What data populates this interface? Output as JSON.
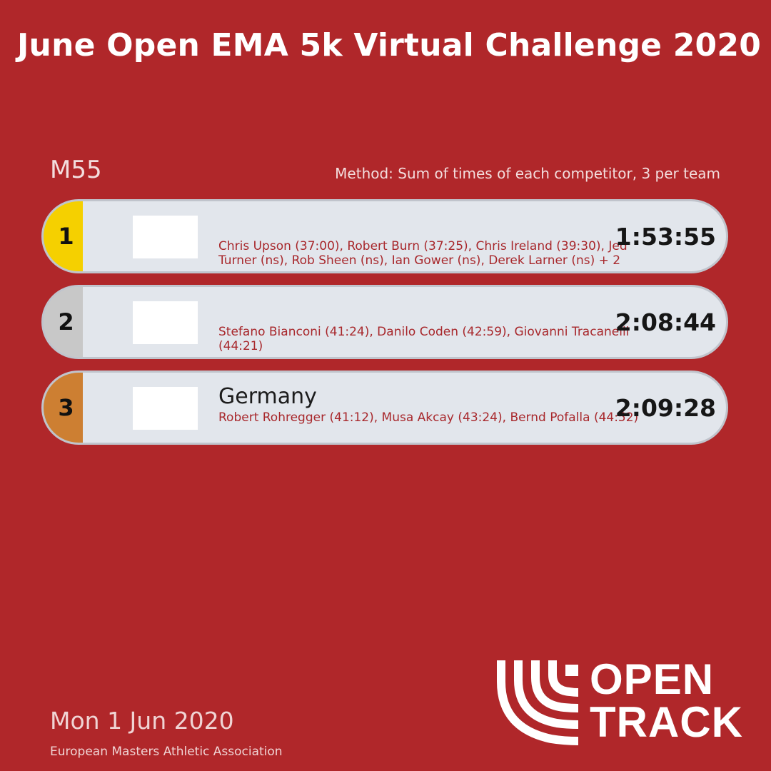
{
  "title": "June Open EMA 5k Virtual Challenge 2020",
  "category": "M55",
  "method": "Method: Sum of times of each competitor, 3 per team",
  "results": [
    {
      "rank": "1",
      "team": "",
      "members": "Chris Upson (37:00), Robert Burn (37:25), Chris Ireland (39:30), Jed Turner (ns), Rob Sheen (ns), Ian Gower (ns), Derek Larner (ns) + 2",
      "time": "1:53:55",
      "color": "#f5d000"
    },
    {
      "rank": "2",
      "team": "",
      "members": "Stefano Bianconi (41:24), Danilo Coden (42:59), Giovanni Tracanelli (44:21)",
      "time": "2:08:44",
      "color": "#c8c8c8"
    },
    {
      "rank": "3",
      "team": "Germany",
      "members": "Robert Rohregger (41:12), Musa Akcay (43:24), Bernd Pofalla (44:52)",
      "time": "2:09:28",
      "color": "#cd7f32"
    }
  ],
  "date": "Mon 1 Jun 2020",
  "organization": "European Masters Athletic Association",
  "brand": {
    "line1": "OPEN",
    "line2": "TRACK",
    "icon": "opentrack-logo-icon"
  },
  "colors": {
    "background": "#b0272a",
    "card": "#e2e6ec",
    "member_text": "#a8282c"
  }
}
